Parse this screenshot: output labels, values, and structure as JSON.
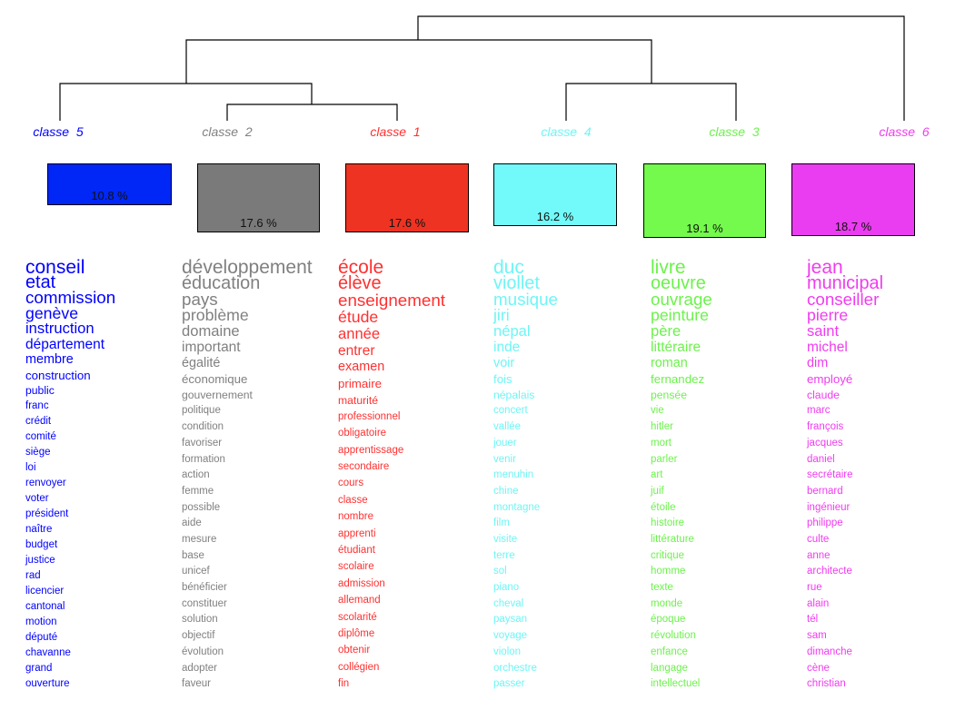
{
  "classes": [
    {
      "label": "classe  5",
      "percent": "10.8 %",
      "percent_value": 10.8,
      "color": "#0000ff",
      "box_color": "#0027f5",
      "words": [
        "conseil",
        "etat",
        "commission",
        "genève",
        "instruction",
        "département",
        "membre",
        "construction",
        "public",
        "franc",
        "crédit",
        "comité",
        "siège",
        "loi",
        "renvoyer",
        "voter",
        "président",
        "naître",
        "budget",
        "justice",
        "rad",
        "licencier",
        "cantonal",
        "motion",
        "député",
        "chavanne",
        "grand",
        "ouverture"
      ]
    },
    {
      "label": "classe  2",
      "percent": "17.6 %",
      "percent_value": 17.6,
      "color": "#808080",
      "box_color": "#7a7a7a",
      "words": [
        "développement",
        "éducation",
        "pays",
        "problème",
        "domaine",
        "important",
        "égalité",
        "économique",
        "gouvernement",
        "politique",
        "condition",
        "favoriser",
        "formation",
        "action",
        "femme",
        "possible",
        "aide",
        "mesure",
        "base",
        "unicef",
        "bénéficier",
        "constituer",
        "solution",
        "objectif",
        "évolution",
        "adopter",
        "faveur"
      ]
    },
    {
      "label": "classe  1",
      "percent": "17.6 %",
      "percent_value": 17.6,
      "color": "#ff3030",
      "box_color": "#ee3322",
      "words": [
        "école",
        "élève",
        "enseignement",
        "étude",
        "année",
        "entrer",
        "examen",
        "primaire",
        "maturité",
        "professionnel",
        "obligatoire",
        "apprentissage",
        "secondaire",
        "cours",
        "classe",
        "nombre",
        "apprenti",
        "étudiant",
        "scolaire",
        "admission",
        "allemand",
        "scolarité",
        "diplôme",
        "obtenir",
        "collégien",
        "fin"
      ]
    },
    {
      "label": "classe  4",
      "percent": "16.2 %",
      "percent_value": 16.2,
      "color": "#6ff5f5",
      "box_color": "#72fafa",
      "words": [
        "duc",
        "viollet",
        "musique",
        "jiri",
        "népal",
        "inde",
        "voir",
        "fois",
        "népalais",
        "concert",
        "vallée",
        "jouer",
        "venir",
        "menuhin",
        "chine",
        "montagne",
        "film",
        "visite",
        "terre",
        "sol",
        "piano",
        "cheval",
        "paysan",
        "voyage",
        "violon",
        "orchestre",
        "passer"
      ]
    },
    {
      "label": "classe  3",
      "percent": "19.1 %",
      "percent_value": 19.1,
      "color": "#6cf24c",
      "box_color": "#74fa4c",
      "words": [
        "livre",
        "oeuvre",
        "ouvrage",
        "peinture",
        "père",
        "littéraire",
        "roman",
        "fernandez",
        "pensée",
        "vie",
        "hitler",
        "mort",
        "parler",
        "art",
        "juif",
        "étoile",
        "histoire",
        "littérature",
        "critique",
        "homme",
        "texte",
        "monde",
        "époque",
        "révolution",
        "enfance",
        "langage",
        "intellectuel"
      ]
    },
    {
      "label": "classe  6",
      "percent": "18.7 %",
      "percent_value": 18.7,
      "color": "#f03cf0",
      "box_color": "#ea3cf0",
      "words": [
        "jean",
        "municipal",
        "conseiller",
        "pierre",
        "saint",
        "michel",
        "dim",
        "employé",
        "claude",
        "marc",
        "françois",
        "jacques",
        "daniel",
        "secrétaire",
        "bernard",
        "ingénieur",
        "philippe",
        "culte",
        "anne",
        "architecte",
        "rue",
        "alain",
        "tél",
        "sam",
        "dimanche",
        "cène",
        "christian"
      ]
    }
  ]
}
